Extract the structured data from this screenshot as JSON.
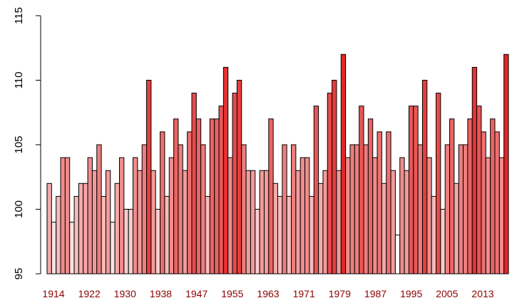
{
  "chart_data": {
    "type": "bar",
    "title": "",
    "xlabel": "",
    "ylabel": "",
    "ylim": [
      95,
      115
    ],
    "yticks": [
      95,
      100,
      105,
      110,
      115
    ],
    "x_tick_labels": [
      "1914",
      "1922",
      "1930",
      "1938",
      "1947",
      "1955",
      "1963",
      "1971",
      "1979",
      "1987",
      "1995",
      "2005",
      "2013"
    ],
    "grid": false,
    "legend": "none",
    "bar_border_color": "#000000",
    "color_ramp": [
      "#ffffff",
      "#e32626"
    ],
    "values": [
      102,
      99,
      101,
      104,
      104,
      99,
      101,
      102,
      102,
      104,
      103,
      105,
      101,
      103,
      99,
      102,
      104,
      100,
      100,
      104,
      103,
      105,
      110,
      103,
      100,
      106,
      101,
      104,
      107,
      105,
      103,
      106,
      109,
      107,
      105,
      101,
      107,
      107,
      108,
      111,
      104,
      109,
      110,
      105,
      103,
      103,
      100,
      103,
      103,
      107,
      102,
      101,
      105,
      101,
      105,
      103,
      104,
      104,
      101,
      108,
      102,
      103,
      109,
      110,
      103,
      112,
      104,
      105,
      105,
      108,
      105,
      107,
      104,
      106,
      102,
      106,
      103,
      98,
      104,
      103,
      108,
      108,
      105,
      110,
      104,
      101,
      109,
      100,
      105,
      107,
      102,
      105,
      105,
      107,
      111,
      108,
      106,
      104,
      107,
      106,
      104,
      112
    ]
  }
}
